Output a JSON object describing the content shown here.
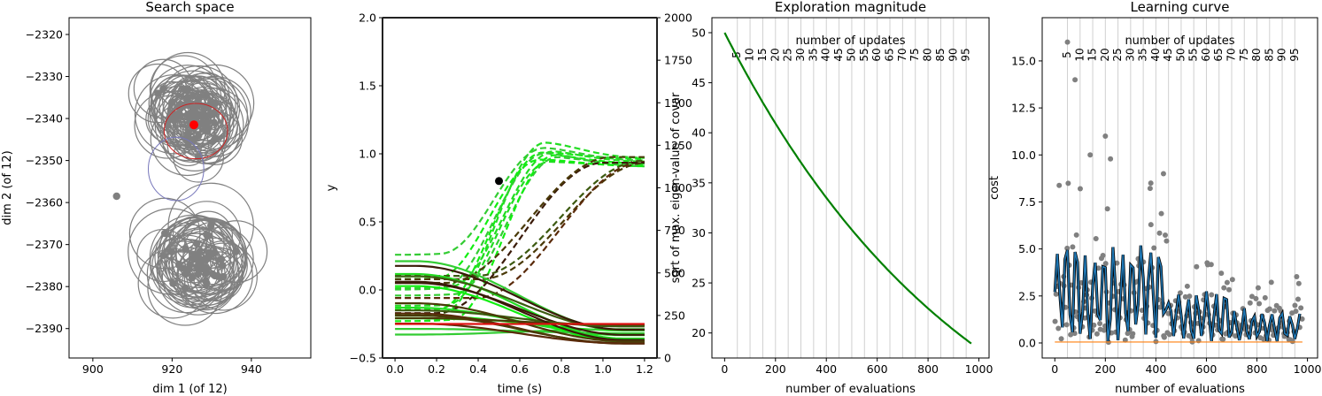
{
  "chart_data": [
    {
      "type": "scatter",
      "title": "Search space",
      "xlabel": "dim 1 (of 12)",
      "ylabel": "dim 2 (of 12)",
      "xlim": [
        894,
        955
      ],
      "ylim": [
        -2397,
        -2316
      ],
      "xticks": [
        900,
        920,
        940
      ],
      "yticks": [
        -2320,
        -2330,
        -2340,
        -2350,
        -2360,
        -2370,
        -2380,
        -2390
      ],
      "point_color": "#808080",
      "mean_color": "#ff0000",
      "clusters": [
        {
          "center": [
            926,
            -2340
          ],
          "spread": [
            9,
            8
          ],
          "count": 55,
          "radius_range": [
            5,
            10
          ]
        },
        {
          "center": [
            928,
            -2374
          ],
          "spread": [
            9,
            7
          ],
          "count": 45,
          "radius_range": [
            6,
            11
          ]
        }
      ],
      "highlight_points": [
        [
          906,
          -2358.5
        ],
        [
          925.5,
          -2341.5
        ]
      ],
      "covariance_ellipses": [
        {
          "center": [
            926,
            -2343
          ],
          "rx": 8,
          "ry": 7,
          "color": "#cc2222"
        },
        {
          "center": [
            921,
            -2352
          ],
          "rx": 7,
          "ry": 8,
          "color": "#7777bb"
        }
      ]
    },
    {
      "type": "line",
      "title": "",
      "xlabel": "time (s)",
      "ylabel": "y",
      "y2label": "sqrt of max. eigen-value of covar",
      "xlim": [
        -0.06,
        1.26
      ],
      "ylim": [
        -0.5,
        2.0
      ],
      "y2lim": [
        0,
        2000
      ],
      "xticks": [
        "0.0",
        "0.2",
        "0.4",
        "0.6",
        "0.8",
        "1.0",
        "1.2"
      ],
      "yticks": [
        "-0.5",
        "0.0",
        "0.5",
        "1.0",
        "1.5",
        "2.0"
      ],
      "y2ticks": [
        "0",
        "250",
        "500",
        "750",
        "1000",
        "1250",
        "1500",
        "1750",
        "2000"
      ],
      "marker": {
        "x": 0.5,
        "y": 0.8,
        "color": "#000000"
      },
      "dashed_group": {
        "start_range": [
          -0.25,
          0.3
        ],
        "end_range": [
          0.9,
          0.98
        ],
        "count": 14
      },
      "solid_group": {
        "start_range": [
          -0.35,
          0.3
        ],
        "end_range": [
          -0.4,
          -0.25
        ],
        "count": 18
      },
      "colors_bright": [
        "#22dd22",
        "#33cc33",
        "#11ee11"
      ],
      "colors_dark": [
        "#3a1a08",
        "#4a3a08",
        "#3c5a10",
        "#5a2a0a"
      ],
      "reference_color": "#dd1111"
    },
    {
      "type": "line",
      "title": "Exploration magnitude",
      "xlabel": "number of evaluations",
      "ylabel": "",
      "secondary_label": "number of updates",
      "xlim": [
        -50,
        1040
      ],
      "ylim": [
        17.5,
        51.5
      ],
      "xticks": [
        0,
        200,
        400,
        600,
        800,
        1000
      ],
      "yticks": [
        20,
        25,
        30,
        35,
        40,
        45,
        50
      ],
      "update_ticks": [
        5,
        10,
        15,
        20,
        25,
        30,
        35,
        40,
        45,
        50,
        55,
        60,
        65,
        70,
        75,
        80,
        85,
        90,
        95
      ],
      "evaluations_per_update": 10,
      "series": [
        {
          "start": 50,
          "decay": 0.999,
          "n": 98,
          "step": 10,
          "color": "#008000"
        }
      ]
    },
    {
      "type": "line",
      "title": "Learning curve",
      "xlabel": "number of evaluations",
      "ylabel": "cost",
      "secondary_label": "number of updates",
      "xlim": [
        -50,
        1040
      ],
      "ylim": [
        -0.8,
        17.3
      ],
      "xticks": [
        0,
        200,
        400,
        600,
        800,
        1000
      ],
      "yticks": [
        "0.0",
        "2.5",
        "5.0",
        "7.5",
        "10.0",
        "12.5",
        "15.0"
      ],
      "update_ticks": [
        5,
        10,
        15,
        20,
        25,
        30,
        35,
        40,
        45,
        50,
        55,
        60,
        65,
        70,
        75,
        80,
        85,
        90,
        95
      ],
      "evaluations_per_update": 10,
      "scatter_color": "#808080",
      "line_color": "#1f77b4",
      "line_outline_color": "#000000",
      "baseline_color": "#ff7f0e"
    }
  ]
}
